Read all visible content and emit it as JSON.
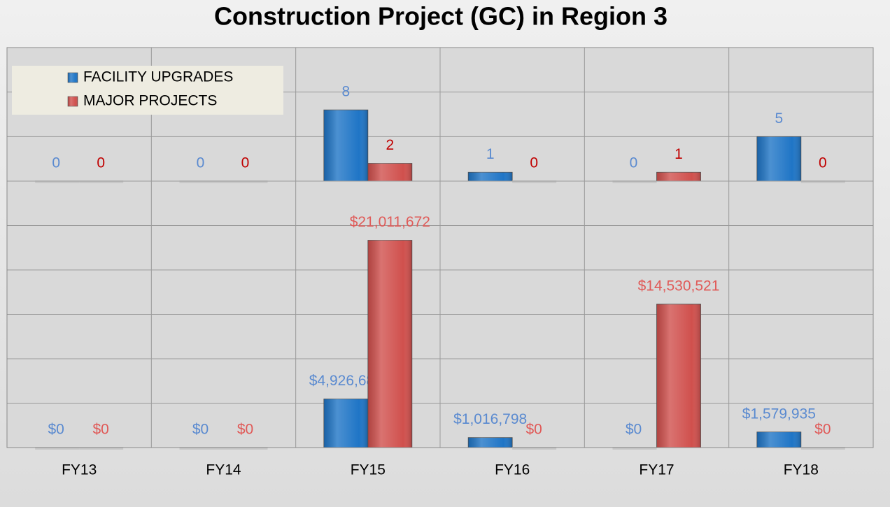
{
  "chart_data": [
    {
      "type": "bar",
      "title": "Construction Project (GC) in Region 3",
      "ylim": [
        0,
        15
      ],
      "yticks": [
        0,
        5,
        10,
        15
      ],
      "grid": true,
      "tick_labels": false,
      "legend": "upper left",
      "series": [
        {
          "name": "FACILITY UPGRADES",
          "color": "#1f75c6",
          "label_color": "#5a8ad0",
          "values": [
            0,
            0,
            8,
            1,
            0,
            5
          ]
        },
        {
          "name": "MAJOR PROJECTS",
          "color": "#d0504d",
          "label_color": "#c00000",
          "values": [
            0,
            0,
            2,
            0,
            1,
            0
          ]
        }
      ]
    },
    {
      "type": "bar",
      "categories": [
        "FY13",
        "FY14",
        "FY15",
        "FY16",
        "FY17",
        "FY18"
      ],
      "ylim": [
        0,
        27000000
      ],
      "yticks": [
        0,
        4500000,
        9000000,
        13500000,
        18000000,
        22500000,
        27000000
      ],
      "grid": true,
      "tick_labels": false,
      "series": [
        {
          "color": "#1f75c6",
          "label_color": "#5a8ad0",
          "values": [
            0,
            0,
            4926689,
            1016798,
            0,
            1579935
          ],
          "value_labels": [
            "$0",
            "$0",
            "$4,926,689",
            "$1,016,798",
            "$0",
            "$1,579,935"
          ]
        },
        {
          "color": "#d0504d",
          "label_color": "#e05a58",
          "values": [
            0,
            0,
            21011672,
            0,
            14530521,
            0
          ],
          "value_labels": [
            "$0",
            "$0",
            "$21,011,672",
            "$0",
            "$14,530,521",
            "$0"
          ]
        }
      ]
    }
  ]
}
